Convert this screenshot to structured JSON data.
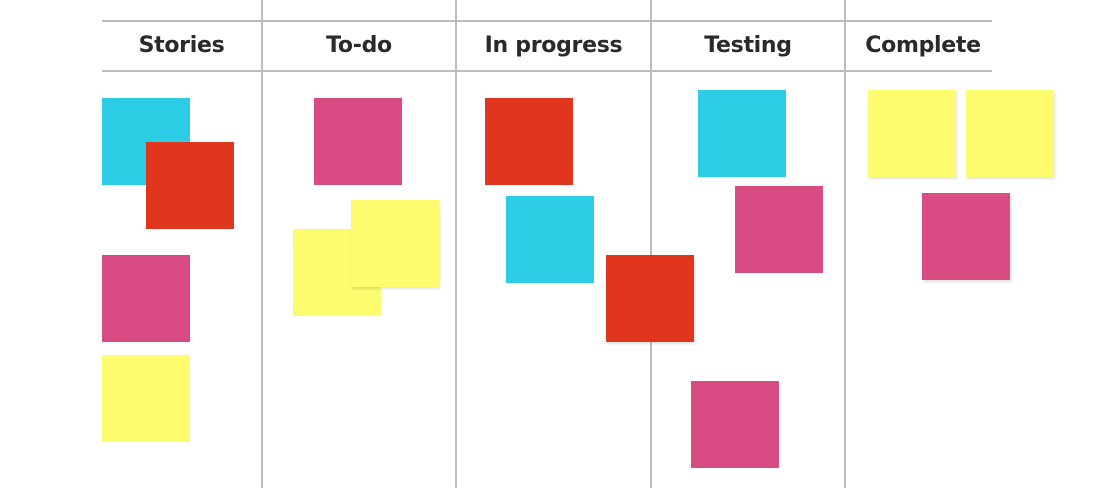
{
  "board": {
    "columns": [
      {
        "title": "Stories",
        "stickies": [
          "cyan",
          "red",
          "pink",
          "yellow"
        ]
      },
      {
        "title": "To-do",
        "stickies": [
          "pink",
          "yellow",
          "yellow"
        ]
      },
      {
        "title": "In progress",
        "stickies": [
          "red",
          "cyan",
          "red"
        ]
      },
      {
        "title": "Testing",
        "stickies": [
          "cyan",
          "pink",
          "pink"
        ]
      },
      {
        "title": "Complete",
        "stickies": [
          "yellow",
          "yellow",
          "pink"
        ]
      }
    ],
    "colors": {
      "cyan": "#2ecde6",
      "red": "#e0361d",
      "pink": "#d94c83",
      "yellow": "#fcfc6e"
    }
  }
}
